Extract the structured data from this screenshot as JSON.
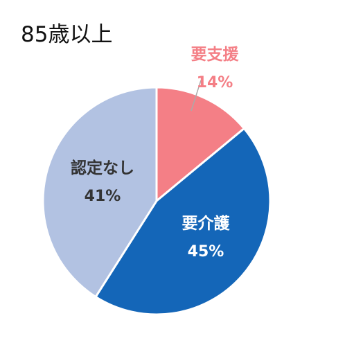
{
  "chart_data": {
    "type": "pie",
    "title": "85歳以上",
    "slices": [
      {
        "label": "要支援",
        "value": 14,
        "display": "14%",
        "color": "#f47f86",
        "text_color": "#f47f86"
      },
      {
        "label": "要介護",
        "value": 45,
        "display": "45%",
        "color": "#1466b8",
        "text_color": "#ffffff"
      },
      {
        "label": "認定なし",
        "value": 41,
        "display": "41%",
        "color": "#b2c2e2",
        "text_color": "#333333"
      }
    ]
  }
}
